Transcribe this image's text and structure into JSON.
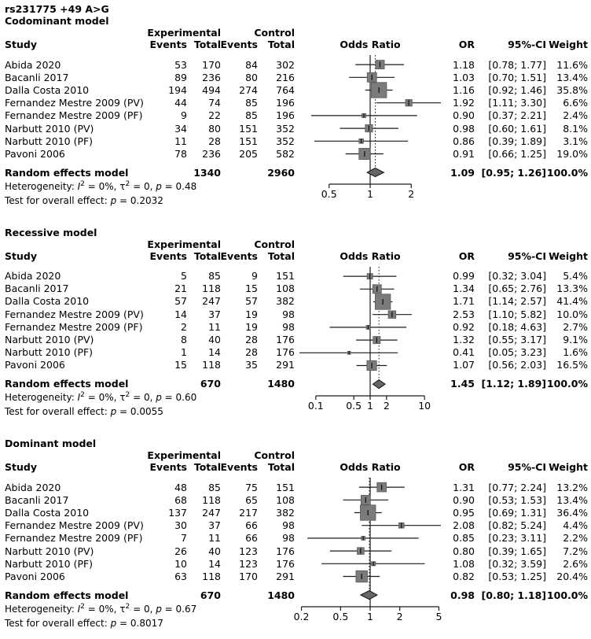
{
  "figure_title": "rs231775 +49 A>G",
  "columns": {
    "study": "Study",
    "exp_group": "Experimental",
    "ctrl_group": "Control",
    "events": "Events",
    "total": "Total",
    "effect": "Odds Ratio",
    "or": "OR",
    "ci": "95%-CI",
    "weight": "Weight"
  },
  "labels": {
    "pooled": "Random effects model",
    "het_prefix": "Heterogeneity: ",
    "i_sym": "I",
    "sup_two": "2",
    "tau_sym": "τ",
    "p_sym": "p",
    "eq": " = ",
    "comma": ", ",
    "test_prefix": "Test for overall effect: "
  },
  "style": {
    "square_fill": "#7b7b7b",
    "square_stroke": "#5a5a5a",
    "diamond_fill": "#666666",
    "diamond_stroke": "#111111",
    "line_color": "#1a1a1a"
  },
  "chart_data": [
    {
      "type": "forest",
      "title": "Codominant model",
      "effect_measure": "Odds Ratio",
      "scale": "log",
      "axis_ticks": [
        0.5,
        1,
        2
      ],
      "axis_tick_labels": [
        "0.5",
        "1",
        "2"
      ],
      "studies": [
        {
          "name": "Abida 2020",
          "e_events": 53,
          "e_total": 170,
          "c_events": 84,
          "c_total": 302,
          "or": 1.18,
          "lo": 0.78,
          "hi": 1.77,
          "or_text": "1.18",
          "ci_text": "[0.78; 1.77]",
          "weight": 11.6,
          "weight_text": "11.6%"
        },
        {
          "name": "Bacanli 2017",
          "e_events": 89,
          "e_total": 236,
          "c_events": 80,
          "c_total": 216,
          "or": 1.03,
          "lo": 0.7,
          "hi": 1.51,
          "or_text": "1.03",
          "ci_text": "[0.70; 1.51]",
          "weight": 13.4,
          "weight_text": "13.4%"
        },
        {
          "name": "Dalla Costa 2010",
          "e_events": 194,
          "e_total": 494,
          "c_events": 274,
          "c_total": 764,
          "or": 1.16,
          "lo": 0.92,
          "hi": 1.46,
          "or_text": "1.16",
          "ci_text": "[0.92; 1.46]",
          "weight": 35.8,
          "weight_text": "35.8%"
        },
        {
          "name": "Fernandez Mestre 2009 (PV)",
          "e_events": 44,
          "e_total": 74,
          "c_events": 85,
          "c_total": 196,
          "or": 1.92,
          "lo": 1.11,
          "hi": 3.3,
          "or_text": "1.92",
          "ci_text": "[1.11; 3.30]",
          "weight": 6.6,
          "weight_text": "6.6%"
        },
        {
          "name": "Fernandez Mestre 2009 (PF)",
          "e_events": 9,
          "e_total": 22,
          "c_events": 85,
          "c_total": 196,
          "or": 0.9,
          "lo": 0.37,
          "hi": 2.21,
          "or_text": "0.90",
          "ci_text": "[0.37; 2.21]",
          "weight": 2.4,
          "weight_text": "2.4%"
        },
        {
          "name": "Narbutt 2010 (PV)",
          "e_events": 34,
          "e_total": 80,
          "c_events": 151,
          "c_total": 352,
          "or": 0.98,
          "lo": 0.6,
          "hi": 1.61,
          "or_text": "0.98",
          "ci_text": "[0.60; 1.61]",
          "weight": 8.1,
          "weight_text": "8.1%"
        },
        {
          "name": "Narbutt 2010 (PF)",
          "e_events": 11,
          "e_total": 28,
          "c_events": 151,
          "c_total": 352,
          "or": 0.86,
          "lo": 0.39,
          "hi": 1.89,
          "or_text": "0.86",
          "ci_text": "[0.39; 1.89]",
          "weight": 3.1,
          "weight_text": "3.1%"
        },
        {
          "name": "Pavoni 2006",
          "e_events": 78,
          "e_total": 236,
          "c_events": 205,
          "c_total": 582,
          "or": 0.91,
          "lo": 0.66,
          "hi": 1.25,
          "or_text": "0.91",
          "ci_text": "[0.66; 1.25]",
          "weight": 19.0,
          "weight_text": "19.0%"
        }
      ],
      "pooled": {
        "e_total": 1340,
        "c_total": 2960,
        "or": 1.09,
        "lo": 0.95,
        "hi": 1.26,
        "or_text": "1.09",
        "ci_text": "[0.95; 1.26]",
        "weight_text": "100.0%"
      },
      "het": {
        "i2": "0%",
        "tau2": "0",
        "p": "0.48"
      },
      "overall_p": "0.2032"
    },
    {
      "type": "forest",
      "title": "Recessive model",
      "effect_measure": "Odds Ratio",
      "scale": "log",
      "axis_ticks": [
        0.1,
        0.5,
        1,
        2,
        10
      ],
      "axis_tick_labels": [
        "0.1",
        "0.5",
        "1",
        "2",
        "10"
      ],
      "studies": [
        {
          "name": "Abida 2020",
          "e_events": 5,
          "e_total": 85,
          "c_events": 9,
          "c_total": 151,
          "or": 0.99,
          "lo": 0.32,
          "hi": 3.04,
          "or_text": "0.99",
          "ci_text": "[0.32; 3.04]",
          "weight": 5.4,
          "weight_text": "5.4%"
        },
        {
          "name": "Bacanli 2017",
          "e_events": 21,
          "e_total": 118,
          "c_events": 15,
          "c_total": 108,
          "or": 1.34,
          "lo": 0.65,
          "hi": 2.76,
          "or_text": "1.34",
          "ci_text": "[0.65; 2.76]",
          "weight": 13.3,
          "weight_text": "13.3%"
        },
        {
          "name": "Dalla Costa 2010",
          "e_events": 57,
          "e_total": 247,
          "c_events": 57,
          "c_total": 382,
          "or": 1.71,
          "lo": 1.14,
          "hi": 2.57,
          "or_text": "1.71",
          "ci_text": "[1.14; 2.57]",
          "weight": 41.4,
          "weight_text": "41.4%"
        },
        {
          "name": "Fernandez Mestre 2009 (PV)",
          "e_events": 14,
          "e_total": 37,
          "c_events": 19,
          "c_total": 98,
          "or": 2.53,
          "lo": 1.1,
          "hi": 5.82,
          "or_text": "2.53",
          "ci_text": "[1.10; 5.82]",
          "weight": 10.0,
          "weight_text": "10.0%"
        },
        {
          "name": "Fernandez Mestre 2009 (PF)",
          "e_events": 2,
          "e_total": 11,
          "c_events": 19,
          "c_total": 98,
          "or": 0.92,
          "lo": 0.18,
          "hi": 4.63,
          "or_text": "0.92",
          "ci_text": "[0.18; 4.63]",
          "weight": 2.7,
          "weight_text": "2.7%"
        },
        {
          "name": "Narbutt 2010 (PV)",
          "e_events": 8,
          "e_total": 40,
          "c_events": 28,
          "c_total": 176,
          "or": 1.32,
          "lo": 0.55,
          "hi": 3.17,
          "or_text": "1.32",
          "ci_text": "[0.55; 3.17]",
          "weight": 9.1,
          "weight_text": "9.1%"
        },
        {
          "name": "Narbutt 2010 (PF)",
          "e_events": 1,
          "e_total": 14,
          "c_events": 28,
          "c_total": 176,
          "or": 0.41,
          "lo": 0.05,
          "hi": 3.23,
          "or_text": "0.41",
          "ci_text": "[0.05; 3.23]",
          "weight": 1.6,
          "weight_text": "1.6%"
        },
        {
          "name": "Pavoni 2006",
          "e_events": 15,
          "e_total": 118,
          "c_events": 35,
          "c_total": 291,
          "or": 1.07,
          "lo": 0.56,
          "hi": 2.03,
          "or_text": "1.07",
          "ci_text": "[0.56; 2.03]",
          "weight": 16.5,
          "weight_text": "16.5%"
        }
      ],
      "pooled": {
        "e_total": 670,
        "c_total": 1480,
        "or": 1.45,
        "lo": 1.12,
        "hi": 1.89,
        "or_text": "1.45",
        "ci_text": "[1.12; 1.89]",
        "weight_text": "100.0%"
      },
      "het": {
        "i2": "0%",
        "tau2": "0",
        "p": "0.60"
      },
      "overall_p": "0.0055"
    },
    {
      "type": "forest",
      "title": "Dominant model",
      "effect_measure": "Odds Ratio",
      "scale": "log",
      "axis_ticks": [
        0.2,
        0.5,
        1,
        2,
        5
      ],
      "axis_tick_labels": [
        "0.2",
        "0.5",
        "1",
        "2",
        "5"
      ],
      "studies": [
        {
          "name": "Abida 2020",
          "e_events": 48,
          "e_total": 85,
          "c_events": 75,
          "c_total": 151,
          "or": 1.31,
          "lo": 0.77,
          "hi": 2.24,
          "or_text": "1.31",
          "ci_text": "[0.77; 2.24]",
          "weight": 13.2,
          "weight_text": "13.2%"
        },
        {
          "name": "Bacanli 2017",
          "e_events": 68,
          "e_total": 118,
          "c_events": 65,
          "c_total": 108,
          "or": 0.9,
          "lo": 0.53,
          "hi": 1.53,
          "or_text": "0.90",
          "ci_text": "[0.53; 1.53]",
          "weight": 13.4,
          "weight_text": "13.4%"
        },
        {
          "name": "Dalla Costa 2010",
          "e_events": 137,
          "e_total": 247,
          "c_events": 217,
          "c_total": 382,
          "or": 0.95,
          "lo": 0.69,
          "hi": 1.31,
          "or_text": "0.95",
          "ci_text": "[0.69; 1.31]",
          "weight": 36.4,
          "weight_text": "36.4%"
        },
        {
          "name": "Fernandez Mestre 2009 (PV)",
          "e_events": 30,
          "e_total": 37,
          "c_events": 66,
          "c_total": 98,
          "or": 2.08,
          "lo": 0.82,
          "hi": 5.24,
          "or_text": "2.08",
          "ci_text": "[0.82; 5.24]",
          "weight": 4.4,
          "weight_text": "4.4%"
        },
        {
          "name": "Fernandez Mestre 2009 (PF)",
          "e_events": 7,
          "e_total": 11,
          "c_events": 66,
          "c_total": 98,
          "or": 0.85,
          "lo": 0.23,
          "hi": 3.11,
          "or_text": "0.85",
          "ci_text": "[0.23; 3.11]",
          "weight": 2.2,
          "weight_text": "2.2%"
        },
        {
          "name": "Narbutt 2010 (PV)",
          "e_events": 26,
          "e_total": 40,
          "c_events": 123,
          "c_total": 176,
          "or": 0.8,
          "lo": 0.39,
          "hi": 1.65,
          "or_text": "0.80",
          "ci_text": "[0.39; 1.65]",
          "weight": 7.2,
          "weight_text": "7.2%"
        },
        {
          "name": "Narbutt 2010 (PF)",
          "e_events": 10,
          "e_total": 14,
          "c_events": 123,
          "c_total": 176,
          "or": 1.08,
          "lo": 0.32,
          "hi": 3.59,
          "or_text": "1.08",
          "ci_text": "[0.32; 3.59]",
          "weight": 2.6,
          "weight_text": "2.6%"
        },
        {
          "name": "Pavoni 2006",
          "e_events": 63,
          "e_total": 118,
          "c_events": 170,
          "c_total": 291,
          "or": 0.82,
          "lo": 0.53,
          "hi": 1.25,
          "or_text": "0.82",
          "ci_text": "[0.53; 1.25]",
          "weight": 20.4,
          "weight_text": "20.4%"
        }
      ],
      "pooled": {
        "e_total": 670,
        "c_total": 1480,
        "or": 0.98,
        "lo": 0.8,
        "hi": 1.18,
        "or_text": "0.98",
        "ci_text": "[0.80; 1.18]",
        "weight_text": "100.0%"
      },
      "het": {
        "i2": "0%",
        "tau2": "0",
        "p": "0.67"
      },
      "overall_p": "0.8017"
    }
  ]
}
